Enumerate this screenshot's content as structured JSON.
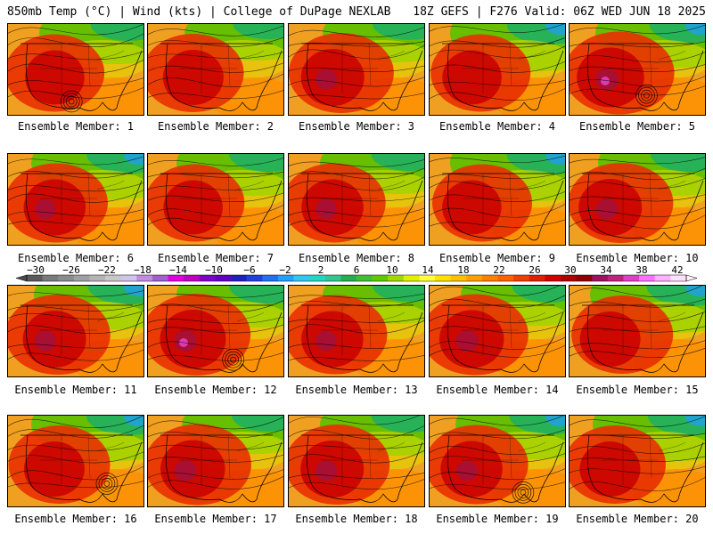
{
  "header": {
    "left": "850mb Temp (°C) | Wind (kts) | College of DuPage NEXLAB",
    "right": "18Z GEFS | F276 Valid: 06Z WED JUN 18 2025"
  },
  "members": [
    {
      "label": "Ensemble Member: 1",
      "hot": 0.55,
      "cool": 0.25,
      "low": true
    },
    {
      "label": "Ensemble Member: 2",
      "hot": 0.6,
      "cool": 0.15,
      "low": false
    },
    {
      "label": "Ensemble Member: 3",
      "hot": 0.7,
      "cool": 0.2,
      "low": false
    },
    {
      "label": "Ensemble Member: 4",
      "hot": 0.55,
      "cool": 0.45,
      "low": false
    },
    {
      "label": "Ensemble Member: 5",
      "hot": 0.85,
      "cool": 0.35,
      "low": true
    },
    {
      "label": "Ensemble Member: 6",
      "hot": 0.65,
      "cool": 0.4,
      "low": false
    },
    {
      "label": "Ensemble Member: 7",
      "hot": 0.55,
      "cool": 0.3,
      "low": false
    },
    {
      "label": "Ensemble Member: 8",
      "hot": 0.65,
      "cool": 0.25,
      "low": false
    },
    {
      "label": "Ensemble Member: 9",
      "hot": 0.55,
      "cool": 0.45,
      "low": false
    },
    {
      "label": "Ensemble Member: 10",
      "hot": 0.7,
      "cool": 0.3,
      "low": false
    },
    {
      "label": "Ensemble Member: 11",
      "hot": 0.7,
      "cool": 0.35,
      "low": false
    },
    {
      "label": "Ensemble Member: 12",
      "hot": 0.8,
      "cool": 0.3,
      "low": true
    },
    {
      "label": "Ensemble Member: 13",
      "hot": 0.65,
      "cool": 0.2,
      "low": false
    },
    {
      "label": "Ensemble Member: 14",
      "hot": 0.75,
      "cool": 0.25,
      "low": false
    },
    {
      "label": "Ensemble Member: 15",
      "hot": 0.6,
      "cool": 0.45,
      "low": false
    },
    {
      "label": "Ensemble Member: 16",
      "hot": 0.6,
      "cool": 0.4,
      "low": true
    },
    {
      "label": "Ensemble Member: 17",
      "hot": 0.75,
      "cool": 0.2,
      "low": false
    },
    {
      "label": "Ensemble Member: 18",
      "hot": 0.7,
      "cool": 0.25,
      "low": false
    },
    {
      "label": "Ensemble Member: 19",
      "hot": 0.65,
      "cool": 0.35,
      "low": true
    },
    {
      "label": "Ensemble Member: 20",
      "hot": 0.6,
      "cool": 0.4,
      "low": false
    }
  ],
  "colorbar": {
    "ticks": [
      "−30",
      "−26",
      "−22",
      "−18",
      "−14",
      "−10",
      "−6",
      "−2",
      "2",
      "6",
      "10",
      "14",
      "18",
      "22",
      "26",
      "30",
      "34",
      "38",
      "42"
    ],
    "colors": [
      "#5a5a5a",
      "#7a7a7a",
      "#8c8c8c",
      "#a0a0a0",
      "#b4b4b4",
      "#c8c8c8",
      "#d0c4ec",
      "#c08ce0",
      "#a060d0",
      "#e000e0",
      "#c000c0",
      "#8000c8",
      "#6000c0",
      "#2020c0",
      "#2040e0",
      "#2070f0",
      "#20a0ff",
      "#30c8f0",
      "#20d8c0",
      "#30c890",
      "#20b050",
      "#40c030",
      "#60c800",
      "#a0d800",
      "#e0f000",
      "#ffff40",
      "#ffe000",
      "#ffc000",
      "#ffa000",
      "#ff8000",
      "#ff6000",
      "#f04000",
      "#e02000",
      "#d00000",
      "#b00000",
      "#900000",
      "#a01060",
      "#c02080",
      "#e040c0",
      "#ff70ff",
      "#ffb0ff",
      "#ffe0ff"
    ]
  }
}
